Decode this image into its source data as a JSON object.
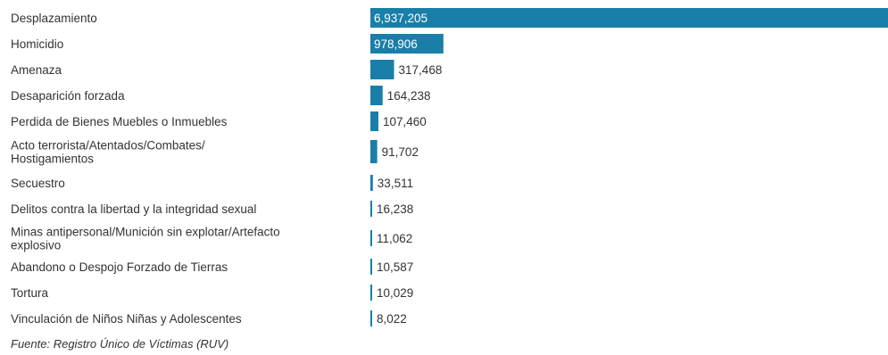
{
  "chart_data": {
    "type": "bar",
    "orientation": "horizontal",
    "categories": [
      "Desplazamiento",
      "Homicidio",
      "Amenaza",
      "Desaparición forzada",
      "Perdida de Bienes Muebles o Inmuebles",
      "Acto terrorista/Atentados/Combates/ Hostigamientos",
      "Secuestro",
      "Delitos contra la libertad y la integridad sexual",
      "Minas antipersonal/Munición sin explotar/Artefacto explosivo",
      "Abandono o Despojo Forzado de Tierras",
      "Tortura",
      "Vinculación de Niños Niñas y Adolescentes"
    ],
    "category_lines": [
      [
        "Desplazamiento"
      ],
      [
        "Homicidio"
      ],
      [
        "Amenaza"
      ],
      [
        "Desaparición forzada"
      ],
      [
        "Perdida de Bienes Muebles o Inmuebles"
      ],
      [
        "Acto terrorista/Atentados/Combates/",
        "Hostigamientos"
      ],
      [
        "Secuestro"
      ],
      [
        "Delitos contra la libertad y la integridad sexual"
      ],
      [
        "Minas antipersonal/Munición sin explotar/Artefacto",
        "explosivo"
      ],
      [
        "Abandono o Despojo Forzado de Tierras"
      ],
      [
        "Tortura"
      ],
      [
        "Vinculación de Niños Niñas y Adolescentes"
      ]
    ],
    "values": [
      6937205,
      978906,
      317468,
      164238,
      107460,
      91702,
      33511,
      16238,
      11062,
      10587,
      10029,
      8022
    ],
    "value_labels": [
      "6,937,205",
      "978,906",
      "317,468",
      "164,238",
      "107,460",
      "91,702",
      "33,511",
      "16,238",
      "11,062",
      "10,587",
      "10,029",
      "8,022"
    ],
    "xlim": [
      0,
      6937205
    ],
    "grid": false,
    "legend": "none",
    "bar_color": "#1a7fa8",
    "source": "Fuente: Registro Único de Víctimas (RUV)"
  }
}
